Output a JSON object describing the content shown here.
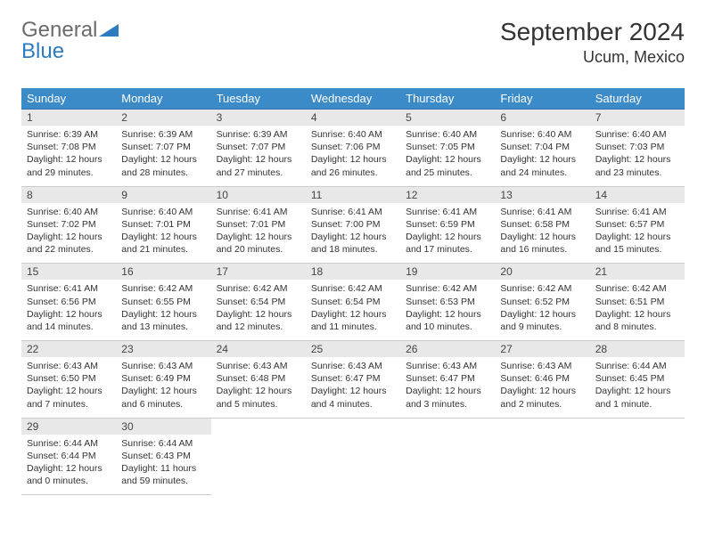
{
  "logo": {
    "text1": "General",
    "text2": "Blue"
  },
  "title": "September 2024",
  "location": "Ucum, Mexico",
  "colors": {
    "header_bg": "#3b8bc9",
    "header_text": "#ffffff",
    "row_top_border": "#2f6fa5",
    "row_bottom_border": "#cccccc",
    "daynum_bg": "#e8e8e8",
    "body_text": "#333333",
    "logo_gray": "#6b6b6b",
    "logo_blue": "#2f7bbf"
  },
  "dow": [
    "Sunday",
    "Monday",
    "Tuesday",
    "Wednesday",
    "Thursday",
    "Friday",
    "Saturday"
  ],
  "weeks": [
    [
      {
        "n": "1",
        "sunrise": "6:39 AM",
        "sunset": "7:08 PM",
        "dl1": "Daylight: 12 hours",
        "dl2": "and 29 minutes."
      },
      {
        "n": "2",
        "sunrise": "6:39 AM",
        "sunset": "7:07 PM",
        "dl1": "Daylight: 12 hours",
        "dl2": "and 28 minutes."
      },
      {
        "n": "3",
        "sunrise": "6:39 AM",
        "sunset": "7:07 PM",
        "dl1": "Daylight: 12 hours",
        "dl2": "and 27 minutes."
      },
      {
        "n": "4",
        "sunrise": "6:40 AM",
        "sunset": "7:06 PM",
        "dl1": "Daylight: 12 hours",
        "dl2": "and 26 minutes."
      },
      {
        "n": "5",
        "sunrise": "6:40 AM",
        "sunset": "7:05 PM",
        "dl1": "Daylight: 12 hours",
        "dl2": "and 25 minutes."
      },
      {
        "n": "6",
        "sunrise": "6:40 AM",
        "sunset": "7:04 PM",
        "dl1": "Daylight: 12 hours",
        "dl2": "and 24 minutes."
      },
      {
        "n": "7",
        "sunrise": "6:40 AM",
        "sunset": "7:03 PM",
        "dl1": "Daylight: 12 hours",
        "dl2": "and 23 minutes."
      }
    ],
    [
      {
        "n": "8",
        "sunrise": "6:40 AM",
        "sunset": "7:02 PM",
        "dl1": "Daylight: 12 hours",
        "dl2": "and 22 minutes."
      },
      {
        "n": "9",
        "sunrise": "6:40 AM",
        "sunset": "7:01 PM",
        "dl1": "Daylight: 12 hours",
        "dl2": "and 21 minutes."
      },
      {
        "n": "10",
        "sunrise": "6:41 AM",
        "sunset": "7:01 PM",
        "dl1": "Daylight: 12 hours",
        "dl2": "and 20 minutes."
      },
      {
        "n": "11",
        "sunrise": "6:41 AM",
        "sunset": "7:00 PM",
        "dl1": "Daylight: 12 hours",
        "dl2": "and 18 minutes."
      },
      {
        "n": "12",
        "sunrise": "6:41 AM",
        "sunset": "6:59 PM",
        "dl1": "Daylight: 12 hours",
        "dl2": "and 17 minutes."
      },
      {
        "n": "13",
        "sunrise": "6:41 AM",
        "sunset": "6:58 PM",
        "dl1": "Daylight: 12 hours",
        "dl2": "and 16 minutes."
      },
      {
        "n": "14",
        "sunrise": "6:41 AM",
        "sunset": "6:57 PM",
        "dl1": "Daylight: 12 hours",
        "dl2": "and 15 minutes."
      }
    ],
    [
      {
        "n": "15",
        "sunrise": "6:41 AM",
        "sunset": "6:56 PM",
        "dl1": "Daylight: 12 hours",
        "dl2": "and 14 minutes."
      },
      {
        "n": "16",
        "sunrise": "6:42 AM",
        "sunset": "6:55 PM",
        "dl1": "Daylight: 12 hours",
        "dl2": "and 13 minutes."
      },
      {
        "n": "17",
        "sunrise": "6:42 AM",
        "sunset": "6:54 PM",
        "dl1": "Daylight: 12 hours",
        "dl2": "and 12 minutes."
      },
      {
        "n": "18",
        "sunrise": "6:42 AM",
        "sunset": "6:54 PM",
        "dl1": "Daylight: 12 hours",
        "dl2": "and 11 minutes."
      },
      {
        "n": "19",
        "sunrise": "6:42 AM",
        "sunset": "6:53 PM",
        "dl1": "Daylight: 12 hours",
        "dl2": "and 10 minutes."
      },
      {
        "n": "20",
        "sunrise": "6:42 AM",
        "sunset": "6:52 PM",
        "dl1": "Daylight: 12 hours",
        "dl2": "and 9 minutes."
      },
      {
        "n": "21",
        "sunrise": "6:42 AM",
        "sunset": "6:51 PM",
        "dl1": "Daylight: 12 hours",
        "dl2": "and 8 minutes."
      }
    ],
    [
      {
        "n": "22",
        "sunrise": "6:43 AM",
        "sunset": "6:50 PM",
        "dl1": "Daylight: 12 hours",
        "dl2": "and 7 minutes."
      },
      {
        "n": "23",
        "sunrise": "6:43 AM",
        "sunset": "6:49 PM",
        "dl1": "Daylight: 12 hours",
        "dl2": "and 6 minutes."
      },
      {
        "n": "24",
        "sunrise": "6:43 AM",
        "sunset": "6:48 PM",
        "dl1": "Daylight: 12 hours",
        "dl2": "and 5 minutes."
      },
      {
        "n": "25",
        "sunrise": "6:43 AM",
        "sunset": "6:47 PM",
        "dl1": "Daylight: 12 hours",
        "dl2": "and 4 minutes."
      },
      {
        "n": "26",
        "sunrise": "6:43 AM",
        "sunset": "6:47 PM",
        "dl1": "Daylight: 12 hours",
        "dl2": "and 3 minutes."
      },
      {
        "n": "27",
        "sunrise": "6:43 AM",
        "sunset": "6:46 PM",
        "dl1": "Daylight: 12 hours",
        "dl2": "and 2 minutes."
      },
      {
        "n": "28",
        "sunrise": "6:44 AM",
        "sunset": "6:45 PM",
        "dl1": "Daylight: 12 hours",
        "dl2": "and 1 minute."
      }
    ],
    [
      {
        "n": "29",
        "sunrise": "6:44 AM",
        "sunset": "6:44 PM",
        "dl1": "Daylight: 12 hours",
        "dl2": "and 0 minutes."
      },
      {
        "n": "30",
        "sunrise": "6:44 AM",
        "sunset": "6:43 PM",
        "dl1": "Daylight: 11 hours",
        "dl2": "and 59 minutes."
      },
      null,
      null,
      null,
      null,
      null
    ]
  ]
}
